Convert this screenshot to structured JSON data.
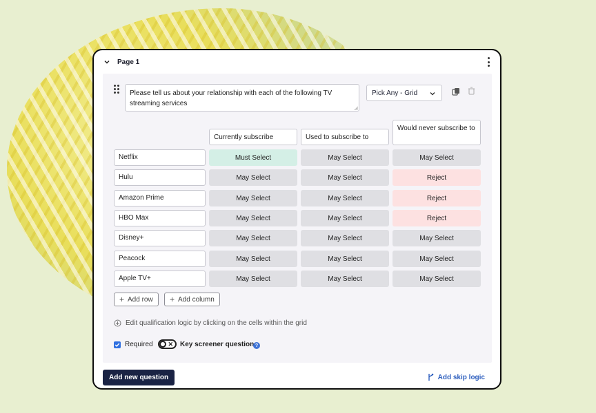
{
  "page": {
    "title": "Page 1"
  },
  "question": {
    "text": "Please tell us about your relationship with each of the following TV streaming services",
    "type": "Pick Any - Grid"
  },
  "grid": {
    "columns": [
      "Currently subscribe",
      "Used to subscribe to",
      "Would never subscribe to"
    ],
    "rows": [
      {
        "label": "Netflix",
        "cells": [
          "Must Select",
          "May Select",
          "May Select"
        ],
        "kinds": [
          "must",
          "may",
          "may"
        ]
      },
      {
        "label": "Hulu",
        "cells": [
          "May Select",
          "May Select",
          "Reject"
        ],
        "kinds": [
          "may",
          "may",
          "reject"
        ]
      },
      {
        "label": "Amazon Prime",
        "cells": [
          "May Select",
          "May Select",
          "Reject"
        ],
        "kinds": [
          "may",
          "may",
          "reject"
        ]
      },
      {
        "label": "HBO Max",
        "cells": [
          "May Select",
          "May Select",
          "Reject"
        ],
        "kinds": [
          "may",
          "may",
          "reject"
        ]
      },
      {
        "label": "Disney+",
        "cells": [
          "May Select",
          "May Select",
          "May Select"
        ],
        "kinds": [
          "may",
          "may",
          "may"
        ]
      },
      {
        "label": "Peacock",
        "cells": [
          "May Select",
          "May Select",
          "May Select"
        ],
        "kinds": [
          "may",
          "may",
          "may"
        ]
      },
      {
        "label": "Apple TV+",
        "cells": [
          "May Select",
          "May Select",
          "May Select"
        ],
        "kinds": [
          "may",
          "may",
          "may"
        ]
      }
    ]
  },
  "actions": {
    "add_row": "Add row",
    "add_column": "Add column"
  },
  "hint": "Edit qualification logic by clicking on the cells within the grid",
  "footer": {
    "required_label": "Required",
    "required_checked": true,
    "key_screener_label": "Key screener question",
    "key_screener_on": false,
    "help_glyph": "?",
    "add_question": "Add new question",
    "skip_logic": "Add skip logic"
  },
  "colors": {
    "must": "#d4efe6",
    "may": "#dfdfe3",
    "reject": "#fde1e1",
    "primary_button": "#1a2344",
    "link": "#2e5fbe"
  }
}
